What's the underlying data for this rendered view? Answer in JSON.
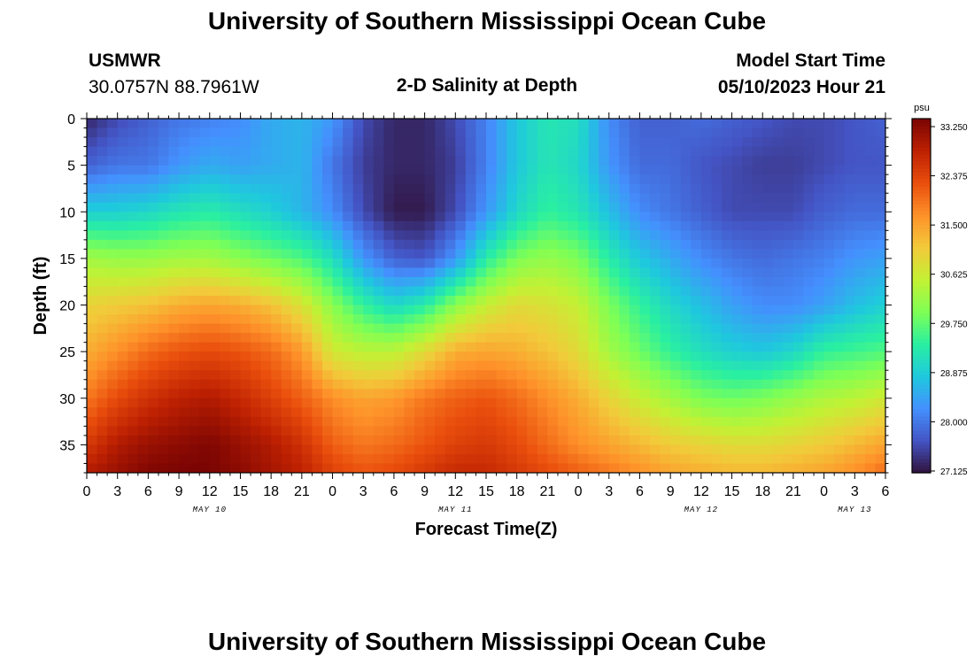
{
  "page": {
    "title": "University of Southern Mississippi Ocean Cube",
    "station": "USMWR",
    "coords": "30.0757N  88.7961W",
    "chart_title": "2-D Salinity at Depth",
    "model_label": "Model Start Time",
    "model_time": "05/10/2023 Hour 21",
    "footer_title": "University of Southern Mississippi Ocean Cube"
  },
  "colors": {
    "ramp": [
      "#30123b",
      "#4454c4",
      "#4490fe",
      "#1fc8de",
      "#29efa2",
      "#7eff55",
      "#c3f134",
      "#f2ca3a",
      "#fe922a",
      "#ea4f0d",
      "#be2102",
      "#7a0403"
    ]
  },
  "chart_data": {
    "type": "heatmap",
    "title": "2-D Salinity at Depth",
    "xlabel": "Forecast Time(Z)",
    "ylabel": "Depth (ft)",
    "x_tick_labels": [
      "0",
      "3",
      "6",
      "9",
      "12",
      "15",
      "18",
      "21",
      "0",
      "3",
      "6",
      "9",
      "12",
      "15",
      "18",
      "21",
      "0",
      "3",
      "6",
      "9",
      "12",
      "15",
      "18",
      "21",
      "0",
      "3",
      "6"
    ],
    "xlim": [
      0,
      78
    ],
    "ylim": [
      0,
      38
    ],
    "y_ticks": [
      0,
      5,
      10,
      15,
      20,
      25,
      30,
      35
    ],
    "date_labels": [
      {
        "label": "MAY 10",
        "hour": 12
      },
      {
        "label": "MAY 11",
        "hour": 36
      },
      {
        "label": "MAY 12",
        "hour": 60
      },
      {
        "label": "MAY 13",
        "hour": 75
      }
    ],
    "colorbar": {
      "unit": "psu",
      "min": 27.125,
      "max": 33.25,
      "tick_labels": [
        "33.250",
        "32.375",
        "31.500",
        "30.625",
        "29.750",
        "28.875",
        "28.000",
        "27.125"
      ]
    },
    "grid": {
      "x_hours": [
        0,
        3,
        6,
        9,
        12,
        15,
        18,
        21,
        24,
        27,
        30,
        33,
        36,
        39,
        42,
        45,
        48,
        51,
        54,
        57,
        60,
        63,
        66,
        69,
        72,
        75,
        78
      ],
      "depths_ft": [
        0,
        5,
        10,
        15,
        20,
        25,
        30,
        35,
        38
      ],
      "salinity_psu": [
        [
          27.3,
          27.6,
          27.8,
          28.0,
          28.1,
          28.2,
          28.5,
          28.6,
          28.3,
          27.6,
          27.3,
          27.3,
          27.6,
          28.1,
          28.8,
          29.2,
          29.1,
          28.2,
          27.8,
          27.8,
          27.9,
          27.8,
          27.7,
          27.6,
          27.6,
          27.7,
          27.8
        ],
        [
          27.8,
          28.0,
          28.0,
          28.3,
          28.5,
          28.4,
          28.5,
          28.6,
          28.0,
          27.5,
          27.3,
          27.3,
          27.5,
          28.1,
          28.8,
          29.2,
          29.0,
          28.3,
          27.9,
          27.9,
          27.7,
          27.6,
          27.5,
          27.5,
          27.6,
          27.7,
          27.7
        ],
        [
          28.9,
          28.9,
          29.0,
          29.2,
          29.3,
          29.1,
          28.9,
          28.6,
          28.2,
          27.6,
          27.2,
          27.2,
          27.6,
          28.3,
          29.0,
          29.4,
          29.2,
          28.7,
          28.2,
          28.0,
          27.8,
          27.6,
          27.6,
          27.6,
          27.8,
          27.9,
          27.9
        ],
        [
          30.2,
          30.1,
          30.1,
          30.2,
          30.2,
          30.0,
          29.8,
          29.6,
          29.1,
          28.3,
          27.8,
          27.7,
          28.3,
          29.3,
          29.9,
          30.1,
          29.9,
          29.3,
          28.8,
          28.5,
          28.2,
          28.0,
          27.9,
          28.0,
          28.1,
          28.3,
          28.4
        ],
        [
          30.9,
          31.0,
          31.1,
          31.3,
          31.4,
          31.3,
          31.1,
          30.7,
          30.0,
          29.4,
          29.0,
          29.3,
          30.0,
          30.5,
          30.8,
          30.7,
          30.5,
          29.9,
          29.4,
          29.0,
          28.7,
          28.4,
          28.2,
          28.2,
          28.4,
          28.7,
          28.9
        ],
        [
          31.3,
          31.6,
          31.9,
          32.1,
          32.2,
          32.1,
          31.9,
          31.5,
          30.6,
          30.4,
          30.4,
          30.8,
          31.3,
          31.4,
          31.3,
          31.1,
          30.8,
          30.2,
          29.8,
          29.4,
          29.1,
          28.9,
          28.8,
          29.0,
          29.4,
          29.5,
          29.6
        ],
        [
          31.8,
          32.2,
          32.5,
          32.7,
          32.8,
          32.6,
          32.3,
          32.0,
          31.6,
          31.4,
          31.5,
          31.8,
          32.0,
          32.1,
          31.9,
          31.6,
          31.3,
          30.9,
          30.5,
          30.2,
          29.9,
          29.8,
          29.9,
          30.1,
          30.3,
          30.4,
          30.6
        ],
        [
          32.4,
          32.8,
          33.0,
          33.1,
          33.2,
          33.0,
          32.8,
          32.5,
          32.0,
          31.8,
          31.9,
          32.1,
          32.3,
          32.4,
          32.2,
          31.9,
          31.6,
          31.4,
          31.2,
          31.0,
          30.9,
          30.8,
          30.8,
          30.9,
          31.0,
          31.2,
          31.4
        ],
        [
          32.8,
          33.0,
          33.2,
          33.25,
          33.25,
          33.1,
          32.9,
          32.7,
          32.3,
          32.1,
          32.2,
          32.4,
          32.6,
          32.6,
          32.4,
          32.2,
          32.0,
          31.8,
          31.6,
          31.4,
          31.3,
          31.2,
          31.2,
          31.3,
          31.4,
          31.6,
          31.9
        ]
      ]
    }
  }
}
